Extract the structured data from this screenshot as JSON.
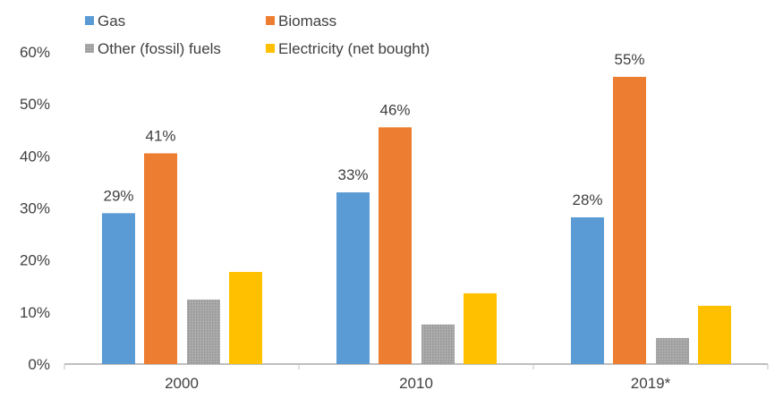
{
  "chart_data": {
    "type": "bar",
    "categories": [
      "2000",
      "2010",
      "2019*"
    ],
    "series": [
      {
        "name": "Gas",
        "color": "#5B9BD5",
        "values": [
          29.0,
          33.0,
          28.2
        ],
        "labels": [
          "29%",
          "33%",
          "28%"
        ]
      },
      {
        "name": "Biomass",
        "color": "#ED7D31",
        "values": [
          40.5,
          45.5,
          55.2
        ],
        "labels": [
          "41%",
          "46%",
          "55%"
        ]
      },
      {
        "name": "Other (fossil) fuels",
        "color": "#A5A5A5",
        "values": [
          12.4,
          7.6,
          5.0
        ],
        "labels": []
      },
      {
        "name": "Electricity (net bought)",
        "color": "#FFC000",
        "values": [
          17.7,
          13.6,
          11.2
        ],
        "labels": []
      }
    ],
    "yticks": [
      "0%",
      "10%",
      "20%",
      "30%",
      "40%",
      "50%",
      "60%"
    ],
    "ylim": [
      0,
      60
    ],
    "grid": false,
    "legend": "top"
  }
}
